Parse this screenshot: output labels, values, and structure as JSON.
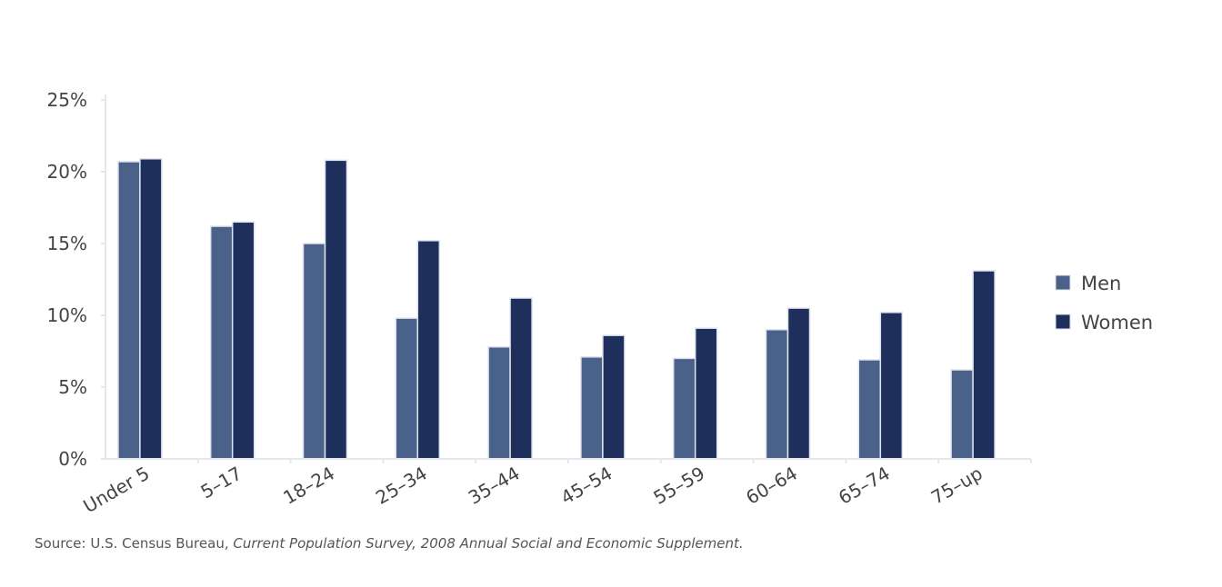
{
  "chart_data": {
    "type": "bar",
    "categories": [
      "Under 5",
      "5–17",
      "18–24",
      "25–34",
      "35–44",
      "45–54",
      "55–59",
      "60–64",
      "65–74",
      "75–up"
    ],
    "series": [
      {
        "name": "Men",
        "values": [
          20.7,
          16.2,
          15.0,
          9.8,
          7.8,
          7.1,
          7.0,
          9.0,
          6.9,
          6.2
        ]
      },
      {
        "name": "Women",
        "values": [
          20.9,
          16.5,
          20.8,
          15.2,
          11.2,
          8.6,
          9.1,
          10.5,
          10.2,
          13.1
        ]
      }
    ],
    "title": "",
    "xlabel": "",
    "ylabel": "",
    "ylim": [
      0,
      25
    ],
    "yticks": [
      "0%",
      "5%",
      "10%",
      "15%",
      "20%",
      "25%"
    ],
    "grid": false,
    "legend": "right",
    "colors": {
      "Men": "#4a6189",
      "Women": "#1e2f5c"
    }
  },
  "source": {
    "prefix": "Source: U.S. Census Bureau, ",
    "survey": "Current Population Survey, 2008 Annual Social and Economic Supplement."
  }
}
